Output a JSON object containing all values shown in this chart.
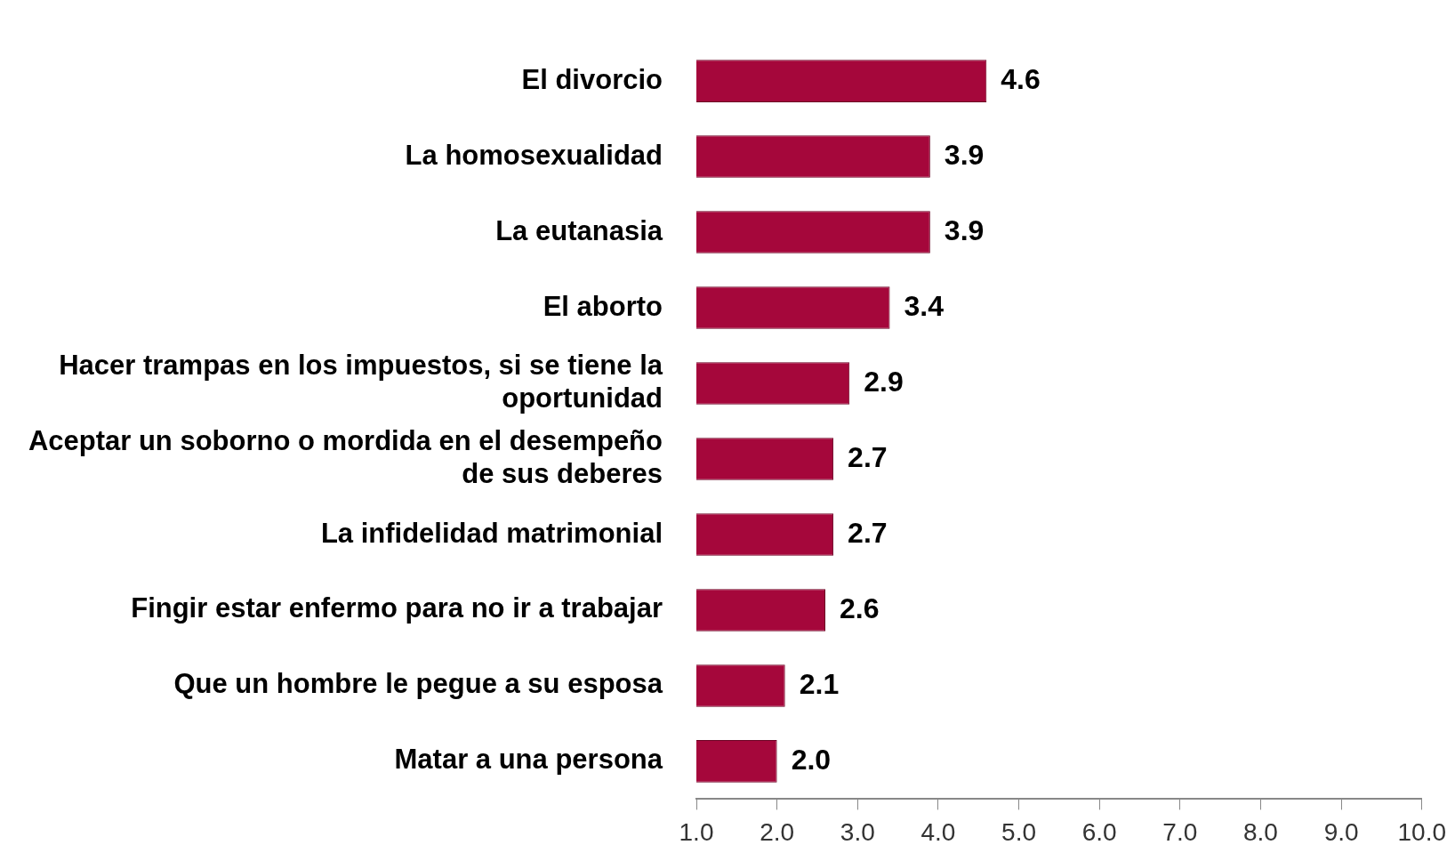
{
  "chart_data": {
    "type": "bar",
    "orientation": "horizontal",
    "categories": [
      "El divorcio",
      "La homosexualidad",
      "La eutanasia",
      "El aborto",
      "Hacer trampas en los impuestos, si se tiene la oportunidad",
      "Aceptar un soborno o mordida en el desempeño de sus deberes",
      "La infidelidad matrimonial",
      "Fingir estar enfermo para no ir a trabajar",
      "Que un hombre le pegue a su esposa",
      "Matar a una persona"
    ],
    "values": [
      4.6,
      3.9,
      3.9,
      3.4,
      2.9,
      2.7,
      2.7,
      2.6,
      2.1,
      2.0
    ],
    "value_labels": [
      "4.6",
      "3.9",
      "3.9",
      "3.4",
      "2.9",
      "2.7",
      "2.7",
      "2.6",
      "2.1",
      "2.0"
    ],
    "color": "#a5073b",
    "xlim": [
      1,
      10
    ],
    "xticks": [
      {
        "value": 1,
        "label": "1.0"
      },
      {
        "value": 2,
        "label": "2.0"
      },
      {
        "value": 3,
        "label": "3.0"
      },
      {
        "value": 4,
        "label": "4.0"
      },
      {
        "value": 5,
        "label": "5.0"
      },
      {
        "value": 6,
        "label": "6.0"
      },
      {
        "value": 7,
        "label": "7.0"
      },
      {
        "value": 8,
        "label": "8.0"
      },
      {
        "value": 9,
        "label": "9.0"
      },
      {
        "value": 10,
        "label": "10.0"
      }
    ],
    "grid": false,
    "legend": false
  }
}
